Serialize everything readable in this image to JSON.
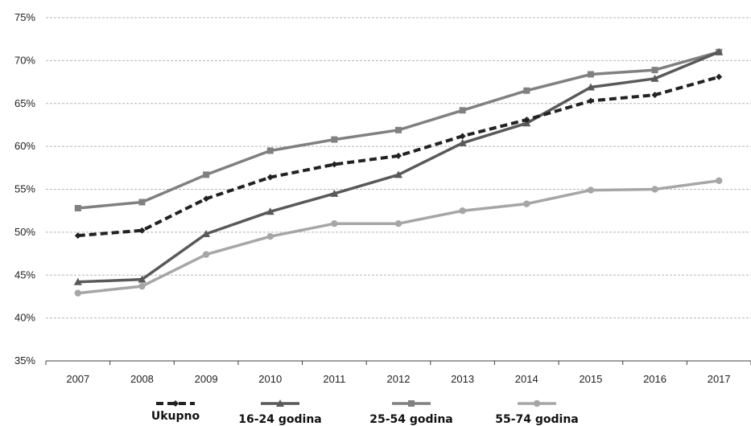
{
  "chart_data": {
    "type": "line",
    "title": "",
    "xlabel": "",
    "ylabel": "",
    "x": [
      "2007",
      "2008",
      "2009",
      "2010",
      "2011",
      "2012",
      "2013",
      "2014",
      "2015",
      "2016",
      "2017"
    ],
    "ylim": [
      35,
      75
    ],
    "yticks": [
      35,
      40,
      45,
      50,
      55,
      60,
      65,
      70,
      75
    ],
    "ytick_labels": [
      "35%",
      "40%",
      "45%",
      "50%",
      "55%",
      "60%",
      "65%",
      "70%",
      "75%"
    ],
    "grid": true,
    "legend_position": "bottom",
    "series": [
      {
        "name": "Ukupno",
        "color": "#222222",
        "line_style": "dashed",
        "marker": "diamond",
        "values": [
          49.6,
          50.2,
          53.9,
          56.4,
          57.9,
          58.9,
          61.2,
          63.1,
          65.3,
          66.0,
          68.1
        ]
      },
      {
        "name": "16-24 godina",
        "color": "#595959",
        "line_style": "solid",
        "marker": "triangle",
        "values": [
          44.2,
          44.5,
          49.8,
          52.4,
          54.5,
          56.7,
          60.4,
          62.7,
          66.9,
          67.9,
          71.0
        ]
      },
      {
        "name": "25-54 godina",
        "color": "#808080",
        "line_style": "solid",
        "marker": "square",
        "values": [
          52.8,
          53.5,
          56.7,
          59.5,
          60.8,
          61.9,
          64.2,
          66.5,
          68.4,
          68.9,
          71.0
        ]
      },
      {
        "name": "55-74 godina",
        "color": "#a6a6a6",
        "line_style": "solid",
        "marker": "circle",
        "values": [
          42.9,
          43.7,
          47.4,
          49.5,
          51.0,
          51.0,
          52.5,
          53.3,
          54.9,
          55.0,
          56.0
        ]
      }
    ]
  }
}
